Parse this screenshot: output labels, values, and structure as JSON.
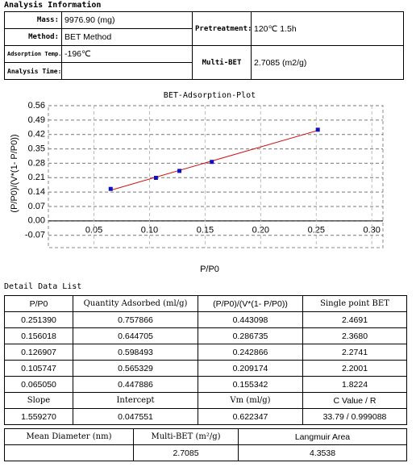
{
  "title": "Analysis Information",
  "info": {
    "rows": [
      [
        "Mass:",
        "9976.90 (mg)"
      ],
      [
        "Method:",
        "BET Method"
      ],
      [
        "Adsorption Temp.:",
        "-196℃"
      ],
      [
        "Analysis Time:"
      ]
    ],
    "pretreatment": [
      "Pretreatment:",
      "120℃  1.5h"
    ],
    "multi_bet": [
      "Multi-BET",
      "2.7085 (m2/g)"
    ]
  },
  "chart_data": {
    "type": "scatter",
    "title": "BET-Adsorption-Plot",
    "x_label": "P/P0",
    "y_label": "(P/P0)/(V*(1- P/P0))",
    "x": [
      0.06505,
      0.105747,
      0.126907,
      0.156018,
      0.25139
    ],
    "values": [
      0.155342,
      0.209174,
      0.242866,
      0.286735,
      0.443098
    ],
    "color": "#1010c0",
    "fit": {
      "slope": 1.55927,
      "intercept": 0.047551,
      "color": "#d01010"
    },
    "xlim": [
      0.009,
      0.31
    ],
    "ylim": [
      -0.13,
      0.56
    ],
    "xticks": [
      0.05,
      {
        "value": 0.1,
        "label": "0.10"
      },
      0.15,
      {
        "value": 0.2,
        "label": "0.20"
      },
      0.25,
      {
        "value": 0.3,
        "label": "0.30"
      }
    ],
    "yticks": [
      0.56,
      0.49,
      0.42,
      0.35,
      0.28,
      0.21,
      0.14,
      0.07,
      {
        "value": 0,
        "label": "0.00"
      },
      -0.07
    ],
    "grid": true
  },
  "detail": {
    "title": "Detail Data List",
    "header": [
      "P/P0",
      "Quantity Adsorbed (ml/g)",
      "(P/P0)/(V*(1- P/P0))",
      "Single point BET"
    ],
    "rows": [
      [
        "0.251390",
        "0.757866",
        "0.443098",
        "2.4691"
      ],
      [
        "0.156018",
        "0.644705",
        "0.286735",
        "2.3680"
      ],
      [
        "0.126907",
        "0.598493",
        "0.242866",
        "2.2741"
      ],
      [
        "0.105747",
        "0.565329",
        "0.209174",
        "2.2001"
      ],
      [
        "0.065050",
        "0.447886",
        "0.155342",
        "1.8224"
      ]
    ],
    "summary_header": [
      "Slope",
      "Intercept",
      "Vm (ml/g)",
      "C Value / R"
    ],
    "summary": [
      "1.559270",
      "0.047551",
      "0.622347",
      "33.79 / 0.999088"
    ],
    "footer_header": [
      "Mean Diameter (nm)",
      "Multi-BET (m²/g)",
      "Langmuir Area"
    ],
    "footer": {
      "multi_bet": "2.7085",
      "langmuir": "4.3538"
    }
  }
}
